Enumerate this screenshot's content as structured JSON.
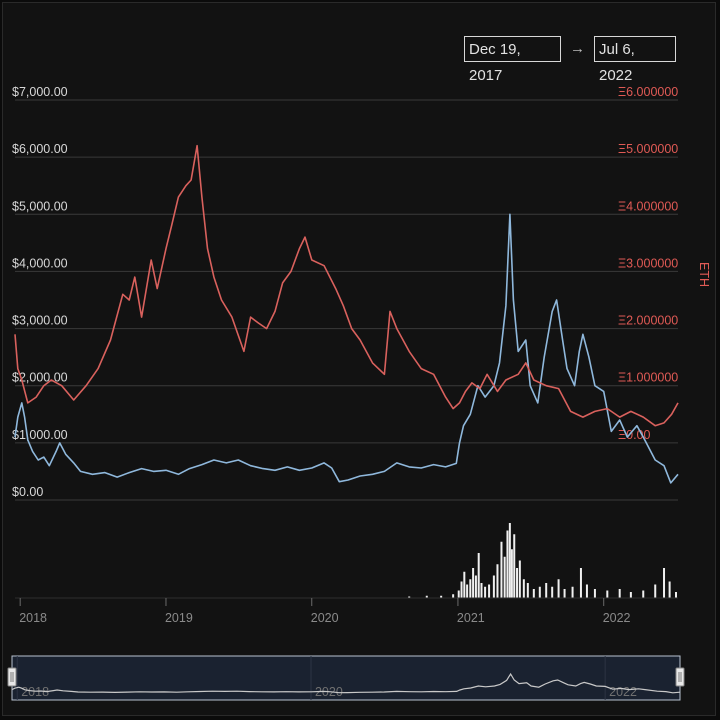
{
  "range_selector": {
    "from": "Dec 19, 2017",
    "arrow": "→",
    "to": "Jul 6, 2022"
  },
  "colors": {
    "usd_line": "#8fb8dc",
    "eth_line": "#d9615d",
    "volume": "#f0f0f0",
    "grid": "#3a3a3a",
    "navigator_line": "#c9c9c9"
  },
  "chart_data": {
    "type": "line",
    "title": "",
    "x_domain": [
      "2017-12-19",
      "2022-07-06"
    ],
    "x_ticks": [
      "2018",
      "2019",
      "2020",
      "2021",
      "2022"
    ],
    "y_left": {
      "label": "",
      "range": [
        0,
        7000
      ],
      "ticks": [
        0,
        1000,
        2000,
        3000,
        4000,
        5000,
        6000,
        7000
      ],
      "tick_labels": [
        "$0.00",
        "$1,000.00",
        "$2,000.00",
        "$3,000.00",
        "$4,000.00",
        "$5,000.00",
        "$6,000.00",
        "$7,000.00"
      ]
    },
    "y_right": {
      "label": "ETH",
      "range": [
        -1,
        6
      ],
      "ticks": [
        0,
        1,
        2,
        3,
        4,
        5,
        6
      ],
      "tick_labels": [
        "Ξ0.00",
        "Ξ1.000000",
        "Ξ2.000000",
        "Ξ3.000000",
        "Ξ4.000000",
        "Ξ5.000000",
        "Ξ6.000000"
      ]
    },
    "grid": true,
    "series": [
      {
        "axis": "left",
        "points": [
          [
            "2017-12-19",
            1100
          ],
          [
            "2017-12-26",
            1450
          ],
          [
            "2018-01-05",
            1700
          ],
          [
            "2018-01-12",
            1450
          ],
          [
            "2018-01-20",
            1050
          ],
          [
            "2018-02-01",
            850
          ],
          [
            "2018-02-15",
            700
          ],
          [
            "2018-03-01",
            750
          ],
          [
            "2018-03-15",
            600
          ],
          [
            "2018-04-01",
            850
          ],
          [
            "2018-04-10",
            1000
          ],
          [
            "2018-04-25",
            800
          ],
          [
            "2018-05-15",
            650
          ],
          [
            "2018-06-01",
            500
          ],
          [
            "2018-07-01",
            450
          ],
          [
            "2018-08-01",
            480
          ],
          [
            "2018-09-01",
            400
          ],
          [
            "2018-10-01",
            480
          ],
          [
            "2018-11-01",
            550
          ],
          [
            "2018-12-01",
            500
          ],
          [
            "2019-01-01",
            520
          ],
          [
            "2019-02-01",
            450
          ],
          [
            "2019-03-01",
            550
          ],
          [
            "2019-04-01",
            620
          ],
          [
            "2019-05-01",
            700
          ],
          [
            "2019-06-01",
            650
          ],
          [
            "2019-07-01",
            700
          ],
          [
            "2019-08-01",
            600
          ],
          [
            "2019-09-01",
            550
          ],
          [
            "2019-10-01",
            520
          ],
          [
            "2019-11-01",
            580
          ],
          [
            "2019-12-01",
            520
          ],
          [
            "2020-01-01",
            560
          ],
          [
            "2020-02-01",
            650
          ],
          [
            "2020-02-20",
            560
          ],
          [
            "2020-03-10",
            320
          ],
          [
            "2020-04-01",
            350
          ],
          [
            "2020-05-01",
            420
          ],
          [
            "2020-06-01",
            450
          ],
          [
            "2020-07-01",
            500
          ],
          [
            "2020-08-01",
            650
          ],
          [
            "2020-09-01",
            580
          ],
          [
            "2020-10-01",
            560
          ],
          [
            "2020-11-01",
            620
          ],
          [
            "2020-12-01",
            580
          ],
          [
            "2020-12-28",
            640
          ],
          [
            "2021-01-05",
            1000
          ],
          [
            "2021-01-15",
            1300
          ],
          [
            "2021-02-01",
            1500
          ],
          [
            "2021-02-20",
            2000
          ],
          [
            "2021-03-10",
            1800
          ],
          [
            "2021-04-01",
            2000
          ],
          [
            "2021-04-15",
            2400
          ],
          [
            "2021-05-01",
            3400
          ],
          [
            "2021-05-11",
            5000
          ],
          [
            "2021-05-20",
            3500
          ],
          [
            "2021-06-01",
            2600
          ],
          [
            "2021-06-20",
            2800
          ],
          [
            "2021-07-01",
            2000
          ],
          [
            "2021-07-20",
            1700
          ],
          [
            "2021-08-05",
            2500
          ],
          [
            "2021-08-25",
            3300
          ],
          [
            "2021-09-05",
            3500
          ],
          [
            "2021-09-20",
            2800
          ],
          [
            "2021-10-01",
            2300
          ],
          [
            "2021-10-20",
            2000
          ],
          [
            "2021-11-01",
            2600
          ],
          [
            "2021-11-10",
            2900
          ],
          [
            "2021-11-25",
            2500
          ],
          [
            "2021-12-10",
            2000
          ],
          [
            "2022-01-01",
            1900
          ],
          [
            "2022-01-20",
            1200
          ],
          [
            "2022-02-10",
            1400
          ],
          [
            "2022-03-01",
            1100
          ],
          [
            "2022-03-25",
            1300
          ],
          [
            "2022-04-10",
            1100
          ],
          [
            "2022-05-10",
            700
          ],
          [
            "2022-06-01",
            600
          ],
          [
            "2022-06-18",
            300
          ],
          [
            "2022-07-06",
            450
          ]
        ]
      },
      {
        "axis": "right",
        "points": [
          [
            "2017-12-19",
            1.9
          ],
          [
            "2017-12-26",
            1.3
          ],
          [
            "2018-01-05",
            1.1
          ],
          [
            "2018-01-20",
            0.7
          ],
          [
            "2018-02-10",
            0.8
          ],
          [
            "2018-03-01",
            1.0
          ],
          [
            "2018-03-20",
            1.1
          ],
          [
            "2018-04-15",
            1.0
          ],
          [
            "2018-05-15",
            0.75
          ],
          [
            "2018-06-15",
            1.0
          ],
          [
            "2018-07-15",
            1.3
          ],
          [
            "2018-08-15",
            1.8
          ],
          [
            "2018-09-15",
            2.6
          ],
          [
            "2018-10-01",
            2.5
          ],
          [
            "2018-10-15",
            2.9
          ],
          [
            "2018-11-01",
            2.2
          ],
          [
            "2018-11-25",
            3.2
          ],
          [
            "2018-12-10",
            2.7
          ],
          [
            "2019-01-01",
            3.4
          ],
          [
            "2019-01-15",
            3.8
          ],
          [
            "2019-02-01",
            4.3
          ],
          [
            "2019-02-20",
            4.5
          ],
          [
            "2019-03-05",
            4.6
          ],
          [
            "2019-03-20",
            5.2
          ],
          [
            "2019-04-01",
            4.3
          ],
          [
            "2019-04-15",
            3.4
          ],
          [
            "2019-05-01",
            2.9
          ],
          [
            "2019-05-20",
            2.5
          ],
          [
            "2019-06-15",
            2.2
          ],
          [
            "2019-07-15",
            1.6
          ],
          [
            "2019-08-01",
            2.2
          ],
          [
            "2019-08-20",
            2.1
          ],
          [
            "2019-09-10",
            2.0
          ],
          [
            "2019-10-01",
            2.3
          ],
          [
            "2019-10-20",
            2.8
          ],
          [
            "2019-11-10",
            3.0
          ],
          [
            "2019-12-01",
            3.4
          ],
          [
            "2019-12-15",
            3.6
          ],
          [
            "2020-01-01",
            3.2
          ],
          [
            "2020-02-01",
            3.1
          ],
          [
            "2020-03-01",
            2.7
          ],
          [
            "2020-03-20",
            2.4
          ],
          [
            "2020-04-10",
            2.0
          ],
          [
            "2020-05-01",
            1.8
          ],
          [
            "2020-06-01",
            1.4
          ],
          [
            "2020-07-01",
            1.2
          ],
          [
            "2020-07-15",
            2.3
          ],
          [
            "2020-08-01",
            2.0
          ],
          [
            "2020-09-01",
            1.6
          ],
          [
            "2020-10-01",
            1.3
          ],
          [
            "2020-11-01",
            1.2
          ],
          [
            "2020-12-01",
            0.8
          ],
          [
            "2020-12-20",
            0.6
          ],
          [
            "2021-01-05",
            0.7
          ],
          [
            "2021-01-20",
            0.9
          ],
          [
            "2021-02-05",
            1.05
          ],
          [
            "2021-02-25",
            0.95
          ],
          [
            "2021-03-15",
            1.2
          ],
          [
            "2021-04-10",
            0.9
          ],
          [
            "2021-05-01",
            1.1
          ],
          [
            "2021-06-01",
            1.2
          ],
          [
            "2021-06-20",
            1.4
          ],
          [
            "2021-07-10",
            1.1
          ],
          [
            "2021-08-10",
            1.0
          ],
          [
            "2021-09-10",
            0.95
          ],
          [
            "2021-10-10",
            0.55
          ],
          [
            "2021-11-10",
            0.45
          ],
          [
            "2021-12-10",
            0.55
          ],
          [
            "2022-01-10",
            0.6
          ],
          [
            "2022-02-10",
            0.45
          ],
          [
            "2022-03-10",
            0.55
          ],
          [
            "2022-04-10",
            0.45
          ],
          [
            "2022-05-10",
            0.3
          ],
          [
            "2022-06-01",
            0.35
          ],
          [
            "2022-06-20",
            0.5
          ],
          [
            "2022-07-06",
            0.7
          ]
        ]
      }
    ],
    "volume": {
      "points": [
        [
          "2020-09-01",
          2
        ],
        [
          "2020-10-15",
          3
        ],
        [
          "2020-11-20",
          3
        ],
        [
          "2020-12-20",
          5
        ],
        [
          "2021-01-03",
          10
        ],
        [
          "2021-01-10",
          22
        ],
        [
          "2021-01-17",
          35
        ],
        [
          "2021-01-24",
          18
        ],
        [
          "2021-02-01",
          25
        ],
        [
          "2021-02-08",
          40
        ],
        [
          "2021-02-15",
          30
        ],
        [
          "2021-02-22",
          60
        ],
        [
          "2021-03-01",
          20
        ],
        [
          "2021-03-10",
          15
        ],
        [
          "2021-03-20",
          18
        ],
        [
          "2021-04-01",
          30
        ],
        [
          "2021-04-10",
          45
        ],
        [
          "2021-04-20",
          75
        ],
        [
          "2021-04-28",
          55
        ],
        [
          "2021-05-05",
          90
        ],
        [
          "2021-05-11",
          100
        ],
        [
          "2021-05-16",
          65
        ],
        [
          "2021-05-22",
          85
        ],
        [
          "2021-05-29",
          40
        ],
        [
          "2021-06-05",
          50
        ],
        [
          "2021-06-15",
          25
        ],
        [
          "2021-06-25",
          20
        ],
        [
          "2021-07-10",
          12
        ],
        [
          "2021-07-25",
          15
        ],
        [
          "2021-08-10",
          20
        ],
        [
          "2021-08-25",
          15
        ],
        [
          "2021-09-10",
          25
        ],
        [
          "2021-09-25",
          12
        ],
        [
          "2021-10-15",
          15
        ],
        [
          "2021-11-05",
          40
        ],
        [
          "2021-11-20",
          18
        ],
        [
          "2021-12-10",
          12
        ],
        [
          "2022-01-10",
          10
        ],
        [
          "2022-02-10",
          12
        ],
        [
          "2022-03-10",
          8
        ],
        [
          "2022-04-10",
          10
        ],
        [
          "2022-05-10",
          18
        ],
        [
          "2022-06-01",
          40
        ],
        [
          "2022-06-15",
          22
        ],
        [
          "2022-07-01",
          8
        ]
      ]
    },
    "navigator": {
      "x_ticks": [
        "2018",
        "2020",
        "2022"
      ]
    }
  }
}
